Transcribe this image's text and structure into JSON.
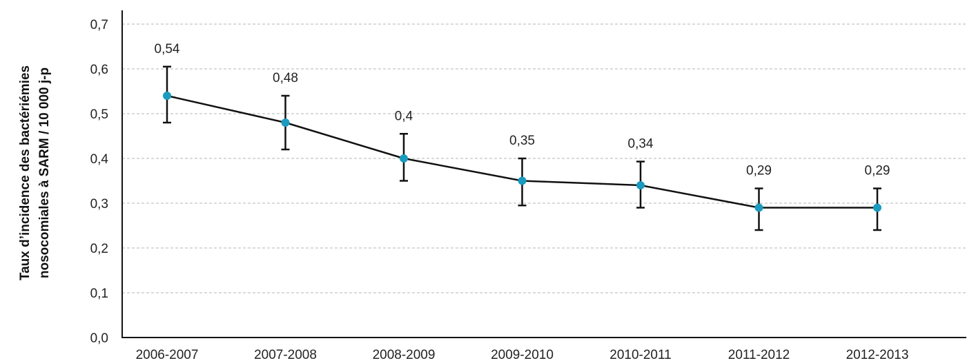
{
  "chart_data": {
    "type": "line",
    "ylabel_line1": "Taux d’incidence des bactériémies",
    "ylabel_line2": "nosocomiales à SARM / 10 000 j-p",
    "categories": [
      "2006-2007",
      "2007-2008",
      "2008-2009",
      "2009-2010",
      "2010-2011",
      "2011-2012",
      "2012-2013"
    ],
    "values": [
      0.54,
      0.48,
      0.4,
      0.35,
      0.34,
      0.29,
      0.29
    ],
    "data_labels": [
      "0,54",
      "0,48",
      "0,4",
      "0,35",
      "0,34",
      "0,29",
      "0,29"
    ],
    "error_low": [
      0.48,
      0.42,
      0.35,
      0.295,
      0.29,
      0.24,
      0.24
    ],
    "error_high": [
      0.605,
      0.54,
      0.455,
      0.4,
      0.393,
      0.333,
      0.333
    ],
    "yticks": [
      "0,0",
      "0,1",
      "0,2",
      "0,3",
      "0,4",
      "0,5",
      "0,6",
      "0,7"
    ],
    "ylim": [
      0,
      0.7
    ],
    "grid": "horizontal dashed",
    "colors": {
      "marker": "#1a9bbf",
      "line": "#111111",
      "grid": "#b5b5b5",
      "axis": "#111111"
    }
  }
}
